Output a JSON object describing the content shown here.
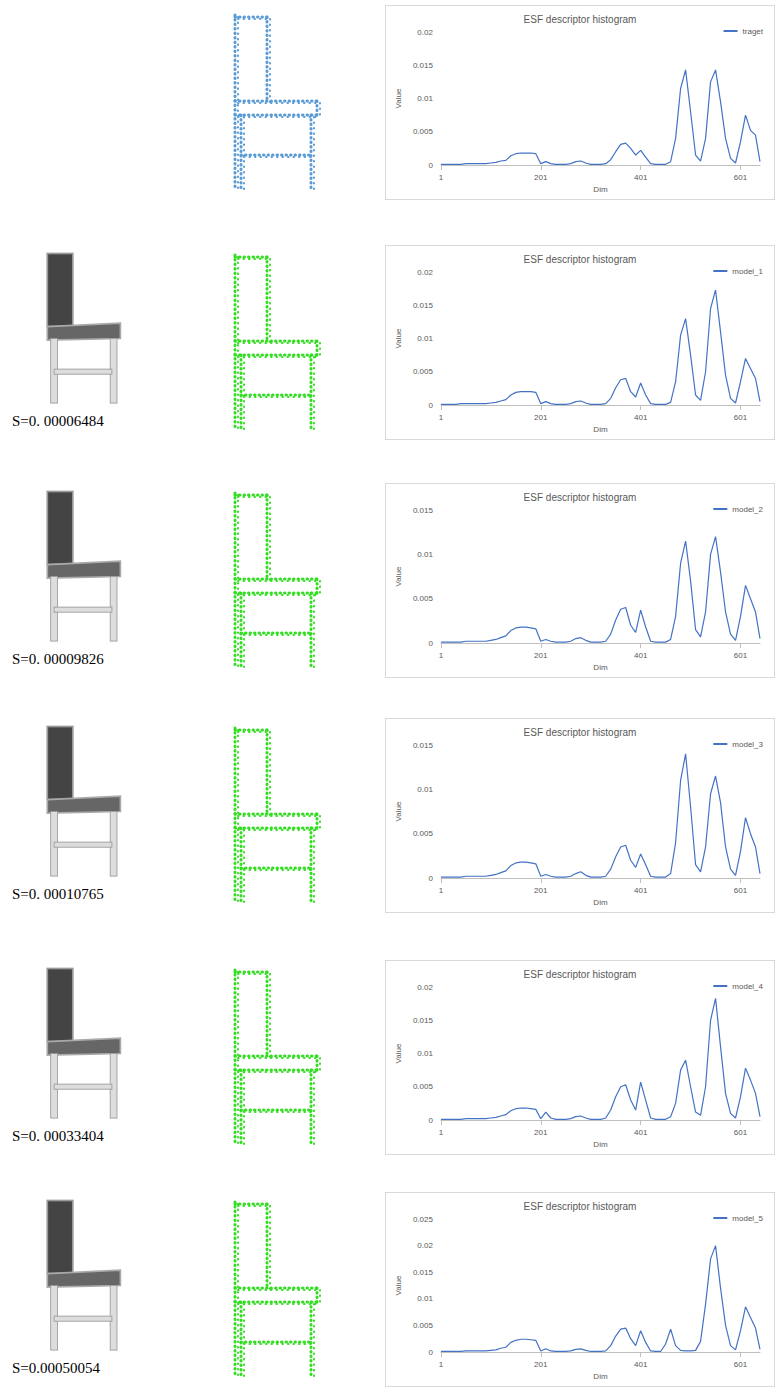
{
  "chart_data": [
    {
      "type": "line",
      "title": "ESF descriptor histogram",
      "x_label": "Dim",
      "y_label": "Value",
      "x": [
        1,
        11,
        21,
        31,
        41,
        51,
        61,
        71,
        81,
        91,
        101,
        111,
        121,
        131,
        141,
        151,
        161,
        171,
        181,
        191,
        201,
        211,
        221,
        231,
        241,
        251,
        261,
        271,
        281,
        291,
        301,
        311,
        321,
        331,
        341,
        351,
        361,
        371,
        381,
        391,
        401,
        411,
        421,
        431,
        441,
        451,
        461,
        471,
        481,
        491,
        501,
        511,
        521,
        531,
        541,
        551,
        561,
        571,
        581,
        591,
        601,
        611,
        621,
        631,
        640
      ],
      "series": [
        {
          "name": "traget",
          "color": "#4472c4",
          "values": [
            0.0001,
            0.0001,
            0.0001,
            0.0001,
            0.0001,
            0.0002,
            0.0002,
            0.0002,
            0.0002,
            0.0002,
            0.0003,
            0.0004,
            0.0006,
            0.0007,
            0.0014,
            0.0017,
            0.0018,
            0.0018,
            0.0018,
            0.0017,
            0.0002,
            0.0005,
            0.0002,
            0.0001,
            0.0001,
            0.0001,
            0.0002,
            0.0005,
            0.0006,
            0.0003,
            0.0001,
            0.0001,
            0.0001,
            0.0002,
            0.0008,
            0.002,
            0.0031,
            0.0033,
            0.0025,
            0.0015,
            0.0022,
            0.0012,
            0.0002,
            0.0001,
            0.0001,
            0.0001,
            0.0005,
            0.004,
            0.0115,
            0.0143,
            0.008,
            0.0015,
            0.0006,
            0.004,
            0.0125,
            0.0143,
            0.0095,
            0.004,
            0.001,
            0.0003,
            0.0035,
            0.0075,
            0.0052,
            0.0045,
            0.0005
          ]
        }
      ],
      "xlim": [
        1,
        640
      ],
      "xticks": [
        1,
        201,
        401,
        601
      ],
      "ylim": [
        0,
        0.02
      ],
      "yticks": [
        0,
        0.005,
        0.01,
        0.015,
        0.02
      ],
      "grid": false,
      "legend": "upper right"
    },
    {
      "type": "line",
      "title": "ESF descriptor histogram",
      "x_label": "Dim",
      "y_label": "Value",
      "annotation": "S=0. 00006484",
      "x": [
        1,
        11,
        21,
        31,
        41,
        51,
        61,
        71,
        81,
        91,
        101,
        111,
        121,
        131,
        141,
        151,
        161,
        171,
        181,
        191,
        201,
        211,
        221,
        231,
        241,
        251,
        261,
        271,
        281,
        291,
        301,
        311,
        321,
        331,
        341,
        351,
        361,
        371,
        381,
        391,
        401,
        411,
        421,
        431,
        441,
        451,
        461,
        471,
        481,
        491,
        501,
        511,
        521,
        531,
        541,
        551,
        561,
        571,
        581,
        591,
        601,
        611,
        621,
        631,
        640
      ],
      "series": [
        {
          "name": "model_1",
          "color": "#4472c4",
          "values": [
            0.0001,
            0.0001,
            0.0001,
            0.0001,
            0.0002,
            0.0002,
            0.0002,
            0.0002,
            0.0002,
            0.0002,
            0.0003,
            0.0004,
            0.0006,
            0.0008,
            0.0015,
            0.0019,
            0.002,
            0.002,
            0.002,
            0.0019,
            0.0002,
            0.0005,
            0.0002,
            0.0001,
            0.0001,
            0.0001,
            0.0002,
            0.0005,
            0.0006,
            0.0003,
            0.0001,
            0.0001,
            0.0001,
            0.0002,
            0.001,
            0.0026,
            0.0038,
            0.004,
            0.002,
            0.0012,
            0.0033,
            0.0015,
            0.0002,
            0.0001,
            0.0001,
            0.0001,
            0.0004,
            0.0035,
            0.0105,
            0.013,
            0.0075,
            0.0015,
            0.0007,
            0.005,
            0.0145,
            0.0173,
            0.011,
            0.0045,
            0.001,
            0.0003,
            0.0035,
            0.007,
            0.0055,
            0.004,
            0.0005
          ]
        }
      ],
      "xlim": [
        1,
        640
      ],
      "xticks": [
        1,
        201,
        401,
        601
      ],
      "ylim": [
        0,
        0.02
      ],
      "yticks": [
        0,
        0.005,
        0.01,
        0.015,
        0.02
      ],
      "grid": false,
      "legend": "upper right"
    },
    {
      "type": "line",
      "title": "ESF descriptor histogram",
      "x_label": "Dim",
      "y_label": "Value",
      "annotation": "S=0. 00009826",
      "x": [
        1,
        11,
        21,
        31,
        41,
        51,
        61,
        71,
        81,
        91,
        101,
        111,
        121,
        131,
        141,
        151,
        161,
        171,
        181,
        191,
        201,
        211,
        221,
        231,
        241,
        251,
        261,
        271,
        281,
        291,
        301,
        311,
        321,
        331,
        341,
        351,
        361,
        371,
        381,
        391,
        401,
        411,
        421,
        431,
        441,
        451,
        461,
        471,
        481,
        491,
        501,
        511,
        521,
        531,
        541,
        551,
        561,
        571,
        581,
        591,
        601,
        611,
        621,
        631,
        640
      ],
      "series": [
        {
          "name": "model_2",
          "color": "#4472c4",
          "values": [
            0.0001,
            0.0001,
            0.0001,
            0.0001,
            0.0001,
            0.0002,
            0.0002,
            0.0002,
            0.0002,
            0.0002,
            0.0003,
            0.0004,
            0.0006,
            0.0008,
            0.0014,
            0.0017,
            0.0018,
            0.0018,
            0.0017,
            0.0016,
            0.0002,
            0.0004,
            0.0002,
            0.0001,
            0.0001,
            0.0001,
            0.0002,
            0.0005,
            0.0006,
            0.0003,
            0.0001,
            0.0001,
            0.0001,
            0.0002,
            0.001,
            0.0026,
            0.0038,
            0.004,
            0.002,
            0.0012,
            0.0037,
            0.0018,
            0.0002,
            0.0001,
            0.0001,
            0.0001,
            0.0004,
            0.003,
            0.009,
            0.0115,
            0.007,
            0.0015,
            0.0007,
            0.0035,
            0.01,
            0.012,
            0.008,
            0.0035,
            0.001,
            0.0003,
            0.003,
            0.0065,
            0.005,
            0.0035,
            0.0005
          ]
        }
      ],
      "xlim": [
        1,
        640
      ],
      "xticks": [
        1,
        201,
        401,
        601
      ],
      "ylim": [
        0,
        0.015
      ],
      "yticks": [
        0,
        0.005,
        0.01,
        0.015
      ],
      "grid": false,
      "legend": "upper right"
    },
    {
      "type": "line",
      "title": "ESF descriptor histogram",
      "x_label": "Dim",
      "y_label": "Value",
      "annotation": "S=0. 00010765",
      "x": [
        1,
        11,
        21,
        31,
        41,
        51,
        61,
        71,
        81,
        91,
        101,
        111,
        121,
        131,
        141,
        151,
        161,
        171,
        181,
        191,
        201,
        211,
        221,
        231,
        241,
        251,
        261,
        271,
        281,
        291,
        301,
        311,
        321,
        331,
        341,
        351,
        361,
        371,
        381,
        391,
        401,
        411,
        421,
        431,
        441,
        451,
        461,
        471,
        481,
        491,
        501,
        511,
        521,
        531,
        541,
        551,
        561,
        571,
        581,
        591,
        601,
        611,
        621,
        631,
        640
      ],
      "series": [
        {
          "name": "model_3",
          "color": "#4472c4",
          "values": [
            0.0001,
            0.0001,
            0.0001,
            0.0001,
            0.0001,
            0.0002,
            0.0002,
            0.0002,
            0.0002,
            0.0002,
            0.0003,
            0.0004,
            0.0006,
            0.0008,
            0.0014,
            0.0017,
            0.0018,
            0.0018,
            0.0017,
            0.0016,
            0.0002,
            0.0004,
            0.0002,
            0.0001,
            0.0001,
            0.0001,
            0.0002,
            0.0005,
            0.0007,
            0.0003,
            0.0001,
            0.0001,
            0.0001,
            0.0002,
            0.001,
            0.0024,
            0.0035,
            0.0037,
            0.002,
            0.0012,
            0.0027,
            0.0015,
            0.0002,
            0.0001,
            0.0001,
            0.0001,
            0.0005,
            0.004,
            0.011,
            0.014,
            0.008,
            0.0015,
            0.0007,
            0.0035,
            0.0095,
            0.0115,
            0.0085,
            0.0035,
            0.001,
            0.0003,
            0.003,
            0.0068,
            0.005,
            0.0035,
            0.0005
          ]
        }
      ],
      "xlim": [
        1,
        640
      ],
      "xticks": [
        1,
        201,
        401,
        601
      ],
      "ylim": [
        0,
        0.015
      ],
      "yticks": [
        0,
        0.005,
        0.01,
        0.015
      ],
      "grid": false,
      "legend": "upper right"
    },
    {
      "type": "line",
      "title": "ESF descriptor histogram",
      "x_label": "Dim",
      "y_label": "Value",
      "annotation": "S=0. 00033404",
      "x": [
        1,
        11,
        21,
        31,
        41,
        51,
        61,
        71,
        81,
        91,
        101,
        111,
        121,
        131,
        141,
        151,
        161,
        171,
        181,
        191,
        201,
        211,
        221,
        231,
        241,
        251,
        261,
        271,
        281,
        291,
        301,
        311,
        321,
        331,
        341,
        351,
        361,
        371,
        381,
        391,
        401,
        411,
        421,
        431,
        441,
        451,
        461,
        471,
        481,
        491,
        501,
        511,
        521,
        531,
        541,
        551,
        561,
        571,
        581,
        591,
        601,
        611,
        621,
        631,
        640
      ],
      "series": [
        {
          "name": "model_4",
          "color": "#4472c4",
          "values": [
            0.0001,
            0.0001,
            0.0001,
            0.0001,
            0.0001,
            0.0002,
            0.0002,
            0.0002,
            0.0002,
            0.0002,
            0.0003,
            0.0004,
            0.0006,
            0.0008,
            0.0014,
            0.0017,
            0.0018,
            0.0018,
            0.0017,
            0.0016,
            0.0002,
            0.0012,
            0.0003,
            0.0001,
            0.0001,
            0.0001,
            0.0002,
            0.0005,
            0.0006,
            0.0003,
            0.0001,
            0.0001,
            0.0001,
            0.0003,
            0.0015,
            0.0035,
            0.005,
            0.0053,
            0.003,
            0.0015,
            0.0057,
            0.003,
            0.0003,
            0.0001,
            0.0001,
            0.0001,
            0.0005,
            0.0025,
            0.0075,
            0.009,
            0.005,
            0.0012,
            0.0007,
            0.005,
            0.015,
            0.0183,
            0.011,
            0.004,
            0.001,
            0.0003,
            0.0035,
            0.0078,
            0.006,
            0.004,
            0.0005
          ]
        }
      ],
      "xlim": [
        1,
        640
      ],
      "xticks": [
        1,
        201,
        401,
        601
      ],
      "ylim": [
        0,
        0.02
      ],
      "yticks": [
        0,
        0.005,
        0.01,
        0.015,
        0.02
      ],
      "grid": false,
      "legend": "upper right"
    },
    {
      "type": "line",
      "title": "ESF descriptor histogram",
      "x_label": "Dim",
      "y_label": "Value",
      "annotation": "S=0.00050054",
      "x": [
        1,
        11,
        21,
        31,
        41,
        51,
        61,
        71,
        81,
        91,
        101,
        111,
        121,
        131,
        141,
        151,
        161,
        171,
        181,
        191,
        201,
        211,
        221,
        231,
        241,
        251,
        261,
        271,
        281,
        291,
        301,
        311,
        321,
        331,
        341,
        351,
        361,
        371,
        381,
        391,
        401,
        411,
        421,
        431,
        441,
        451,
        461,
        471,
        481,
        491,
        501,
        511,
        521,
        531,
        541,
        551,
        561,
        571,
        581,
        591,
        601,
        611,
        621,
        631,
        640
      ],
      "series": [
        {
          "name": "model_5",
          "color": "#4472c4",
          "values": [
            0.0001,
            0.0001,
            0.0001,
            0.0001,
            0.0001,
            0.0002,
            0.0002,
            0.0002,
            0.0002,
            0.0002,
            0.0003,
            0.0004,
            0.0007,
            0.0009,
            0.0018,
            0.0022,
            0.0024,
            0.0024,
            0.0023,
            0.0022,
            0.0002,
            0.0006,
            0.0002,
            0.0001,
            0.0001,
            0.0001,
            0.0002,
            0.0005,
            0.0006,
            0.0003,
            0.0001,
            0.0001,
            0.0001,
            0.0002,
            0.0012,
            0.003,
            0.0043,
            0.0045,
            0.0025,
            0.0012,
            0.004,
            0.0018,
            0.0002,
            0.0001,
            0.0001,
            0.0015,
            0.0043,
            0.0012,
            0.0003,
            0.0002,
            0.0002,
            0.0003,
            0.002,
            0.009,
            0.0175,
            0.02,
            0.012,
            0.005,
            0.0012,
            0.0004,
            0.004,
            0.0085,
            0.0065,
            0.0045,
            0.0005
          ]
        }
      ],
      "xlim": [
        1,
        640
      ],
      "xticks": [
        1,
        201,
        401,
        601
      ],
      "ylim": [
        0,
        0.025
      ],
      "yticks": [
        0,
        0.005,
        0.01,
        0.015,
        0.02,
        0.025
      ],
      "grid": false,
      "legend": "upper right"
    }
  ]
}
